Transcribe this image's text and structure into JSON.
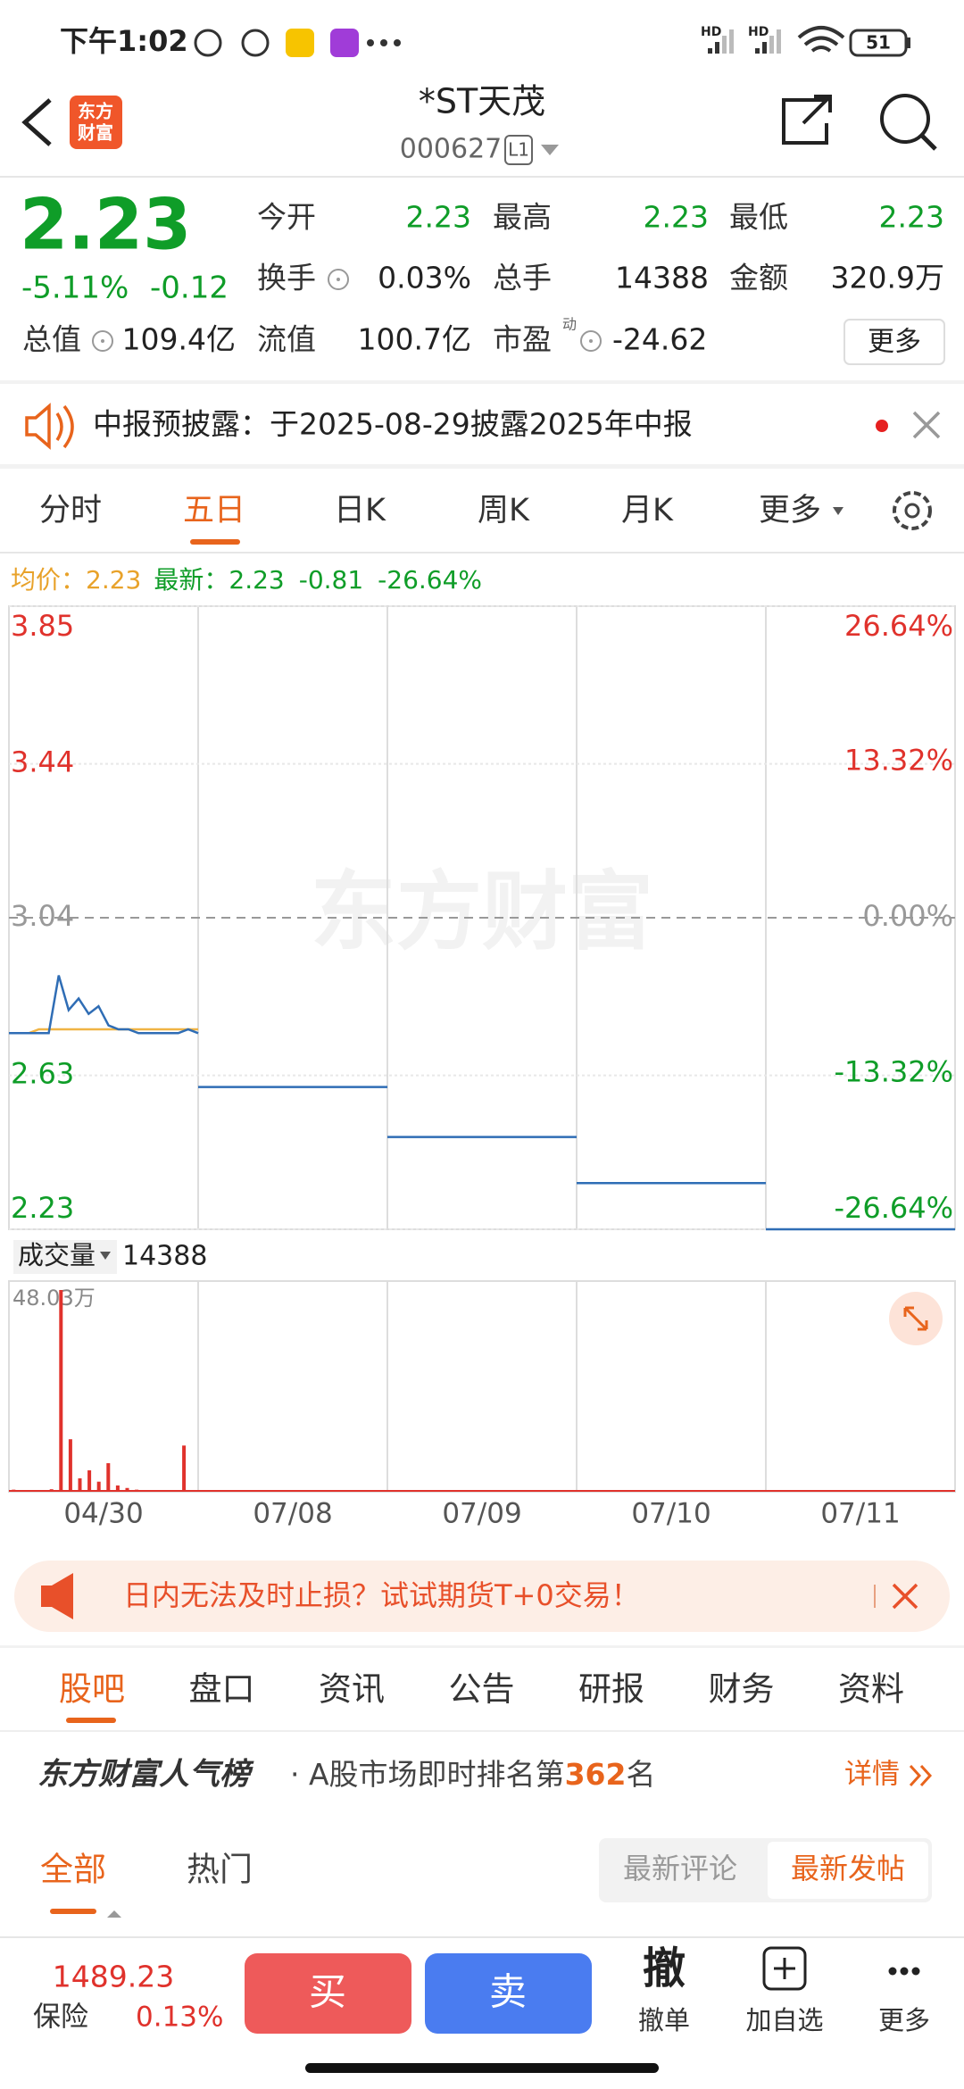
{
  "status_bar": {
    "time": "下午1:02",
    "signal": [
      "HD",
      "HD"
    ],
    "battery": "51"
  },
  "header": {
    "logo": [
      "东方",
      "财富"
    ],
    "title": "*ST天茂",
    "code": "000627",
    "level": "L1"
  },
  "quote": {
    "price": "2.23",
    "change_pct": "-5.11%",
    "change": "-0.12",
    "stats": [
      [
        "今开",
        "2.23"
      ],
      [
        "最高",
        "2.23"
      ],
      [
        "最低",
        "2.23"
      ],
      [
        "换手",
        "0.03%"
      ],
      [
        "总手",
        "14388"
      ],
      [
        "金额",
        "320.9万"
      ],
      [
        "总值",
        "109.4亿"
      ],
      [
        "流值",
        "100.7亿"
      ],
      [
        "市盈",
        "-24.62"
      ]
    ],
    "pe_tag": "动",
    "more": "更多"
  },
  "notice": "中报预披露：于2025-08-29披露2025年中报",
  "tabs": [
    "分时",
    "五日",
    "日K",
    "周K",
    "月K",
    "更多"
  ],
  "chart": {
    "legend": {
      "avg_label": "均价：",
      "avg": "2.23",
      "latest_label": "最新：",
      "latest": "2.23",
      "change": "-0.81",
      "change_pct": "-26.64%"
    },
    "watermark": "东方财富",
    "ylim": [
      2.23,
      3.85
    ],
    "yticks": [
      3.85,
      3.44,
      3.04,
      2.63,
      2.23
    ],
    "y2lim": [
      -26.64,
      26.64
    ],
    "y2ticks": [
      {
        "value": 26.64,
        "label": "26.64%"
      },
      {
        "value": 13.32,
        "label": "13.32%"
      },
      {
        "value": 0,
        "label": "0.00%"
      },
      {
        "value": -13.32,
        "label": "-13.32%"
      },
      {
        "value": -26.64,
        "label": "-26.64%"
      }
    ],
    "price_color": "#2f6db5",
    "avg_color": "#f0b445",
    "volume_color": "#e0322c",
    "days": [
      {
        "price": [
          2.74,
          2.74,
          2.74,
          2.74,
          2.74,
          2.89,
          2.8,
          2.83,
          2.79,
          2.81,
          2.76,
          2.75,
          2.75,
          2.74,
          2.74,
          2.74,
          2.74,
          2.74,
          2.75,
          2.74
        ],
        "avg": [
          2.74,
          2.74,
          2.74,
          2.75,
          2.75,
          2.75,
          2.75,
          2.75,
          2.75,
          2.75,
          2.75,
          2.75,
          2.75,
          2.75,
          2.75,
          2.75,
          2.75,
          2.75,
          2.75,
          2.75
        ],
        "volume": [
          0.5,
          0.3,
          0.4,
          0.2,
          0.6,
          48.03,
          12.5,
          3.2,
          5.1,
          2.4,
          6.8,
          1.5,
          0.9,
          0.5,
          0.3,
          0.4,
          0.2,
          0.1,
          11,
          0.3
        ]
      },
      {
        "price": [
          2.6,
          2.6
        ]
      },
      {
        "price": [
          2.47,
          2.47
        ]
      },
      {
        "price": [
          2.35,
          2.35
        ]
      },
      {
        "price": [
          2.23,
          2.23
        ]
      }
    ],
    "dates": [
      "04/30",
      "07/08",
      "07/09",
      "07/10",
      "07/11"
    ],
    "volume_label": "成交量",
    "volume_total": "14388",
    "vlim": [
      0,
      48.03
    ],
    "vticks": [
      {
        "value": 48.03,
        "label": "48.03万"
      }
    ]
  },
  "ad": "日内无法及时止损？试试期货T+0交易！",
  "sub_tabs": [
    "股吧",
    "盘口",
    "资讯",
    "公告",
    "研报",
    "财务",
    "资料"
  ],
  "ranking": {
    "brand": "东方财富人气榜",
    "text_before": "A股市场即时排名第",
    "rank": "362",
    "text_after": "名",
    "details": "详情"
  },
  "filter": {
    "tabs": [
      "全部",
      "热门"
    ],
    "sort": [
      "最新评论",
      "最新发帖"
    ]
  },
  "bottom_bar": {
    "index_value": "1489.23",
    "index_name": "保险",
    "index_change": "0.13%",
    "buy": "买",
    "sell": "卖",
    "actions": [
      {
        "icon": "撤",
        "label": "撤单"
      },
      {
        "label": "加自选"
      },
      {
        "label": "更多"
      }
    ]
  }
}
